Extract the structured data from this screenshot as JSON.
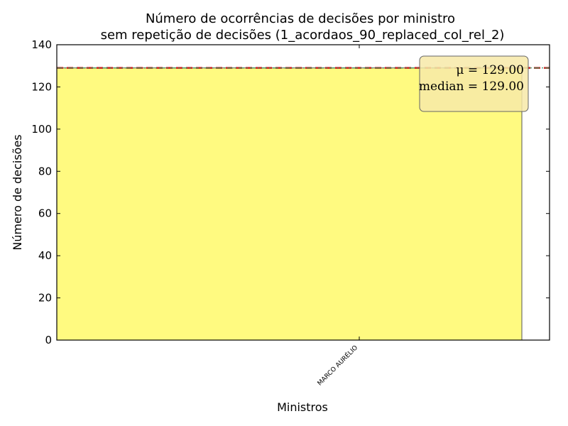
{
  "chart_data": {
    "type": "bar",
    "title": "Número de ocorrências de decisões por ministro",
    "subtitle": "sem repetição de decisões (1_acordaos_90_replaced_col_rel_2)",
    "xlabel": "Ministros",
    "ylabel": "Número de decisões",
    "categories": [
      "MARCO AURÉLIO"
    ],
    "values": [
      129
    ],
    "ylim": [
      0,
      140
    ],
    "yticks": [
      0,
      20,
      40,
      60,
      80,
      100,
      120,
      140
    ],
    "grid": false,
    "legend_placement": "top-right",
    "stats": {
      "mean_text": "μ = 129.00",
      "median_text": "median = 129.00",
      "mean": 129,
      "median": 129
    },
    "colors": {
      "bar": "#fffa80",
      "bar_edge": "#555555",
      "mean_line": "#cc2222",
      "median_line": "#2e8b57",
      "stats_box": "#f7e9a8"
    }
  }
}
